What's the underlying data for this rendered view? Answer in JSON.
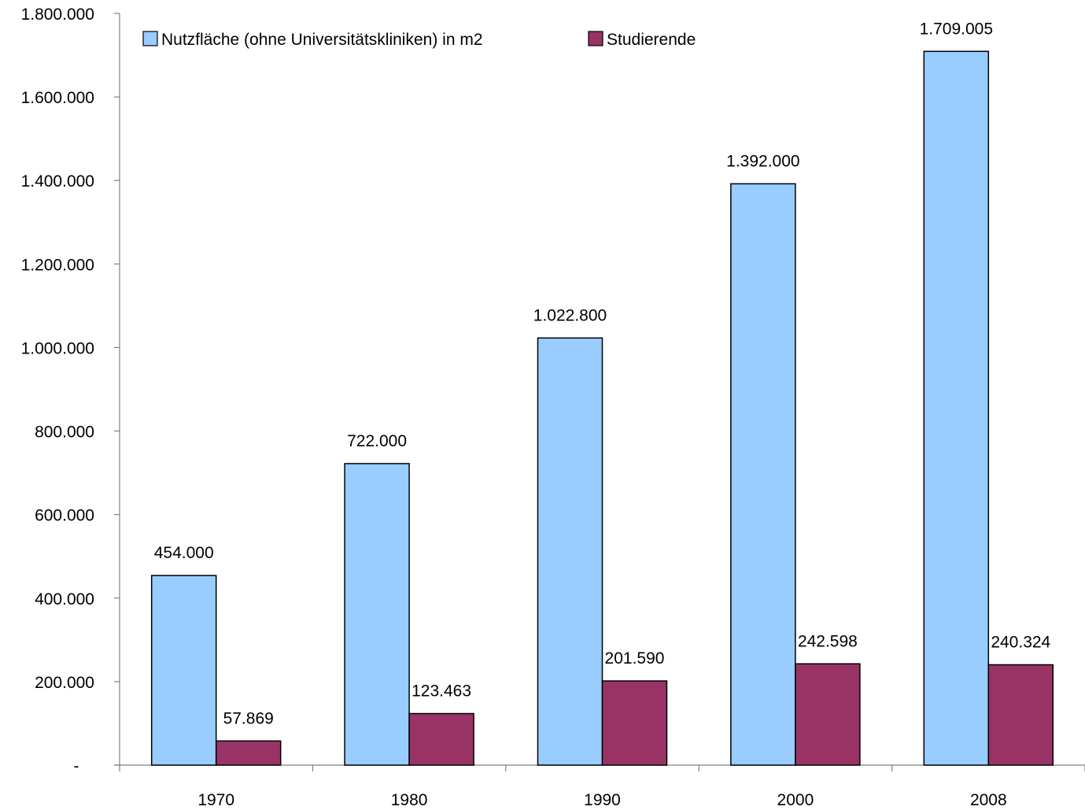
{
  "chart_data": {
    "type": "bar",
    "title": "",
    "xlabel": "",
    "ylabel": "",
    "categories": [
      "1970",
      "1980",
      "1990",
      "2000",
      "2008"
    ],
    "series": [
      {
        "name": "Nutzfläche (ohne Universitätskliniken) in m2",
        "color": "#99CCFF",
        "values": [
          454000,
          722000,
          1022800,
          1392000,
          1709005
        ],
        "labels": [
          "454.000",
          "722.000",
          "1.022.800",
          "1.392.000",
          "1.709.005"
        ]
      },
      {
        "name": "Studierende",
        "color": "#993366",
        "values": [
          57869,
          123463,
          201590,
          242598,
          240324
        ],
        "labels": [
          "57.869",
          "123.463",
          "201.590",
          "242.598",
          "240.324"
        ]
      }
    ],
    "ylim": [
      0,
      1800000
    ],
    "y_ticks": [
      {
        "value": 0,
        "label": "-"
      },
      {
        "value": 200000,
        "label": "200.000"
      },
      {
        "value": 400000,
        "label": "400.000"
      },
      {
        "value": 600000,
        "label": "600.000"
      },
      {
        "value": 800000,
        "label": "800.000"
      },
      {
        "value": 1000000,
        "label": "1.000.000"
      },
      {
        "value": 1200000,
        "label": "1.200.000"
      },
      {
        "value": 1400000,
        "label": "1.400.000"
      },
      {
        "value": 1600000,
        "label": "1.600.000"
      },
      {
        "value": 1800000,
        "label": "1.800.000"
      }
    ],
    "grid": false,
    "legend": "top-left",
    "bar_outline": "#000000"
  }
}
